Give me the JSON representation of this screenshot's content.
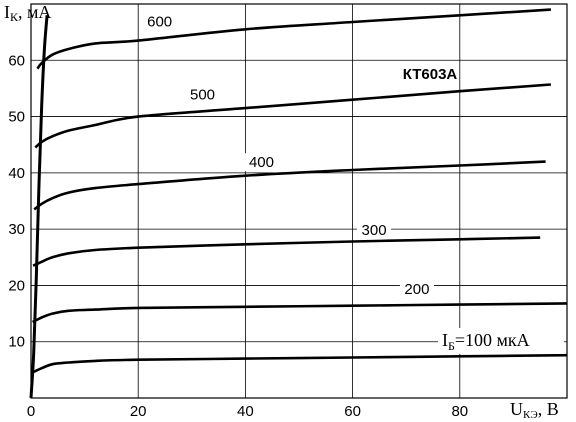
{
  "chart_data": {
    "type": "line",
    "title": "КТ603А",
    "ylabel_main": "I",
    "ylabel_sub": "К",
    "ylabel_unit": ", мА",
    "xlabel_main": "U",
    "xlabel_sub": "КЭ",
    "xlabel_unit": ", В",
    "param_prefix": "I",
    "param_sub": "Б",
    "param_suffix": "=100 мкА",
    "xlim": [
      0,
      100
    ],
    "ylim": [
      0,
      70
    ],
    "xticks": [
      0,
      20,
      40,
      60,
      80
    ],
    "yticks": [
      10,
      20,
      30,
      40,
      50,
      60
    ],
    "grid": true,
    "series": [
      {
        "name": "600",
        "x": [
          1.2,
          2,
          4,
          7,
          12,
          20,
          40,
          60,
          80,
          97
        ],
        "y": [
          58.5,
          59.5,
          61,
          62,
          63,
          63.5,
          65.5,
          66.8,
          68,
          69
        ]
      },
      {
        "name": "500",
        "x": [
          0.8,
          2,
          4,
          7,
          12,
          20,
          40,
          60,
          80,
          97
        ],
        "y": [
          44.5,
          45.5,
          46.5,
          47.5,
          48.5,
          50,
          51.5,
          53,
          54.5,
          55.7
        ]
      },
      {
        "name": "400",
        "x": [
          0.6,
          2,
          4,
          7,
          12,
          20,
          40,
          60,
          80,
          96
        ],
        "y": [
          33.5,
          34.5,
          35.5,
          36.5,
          37.3,
          38,
          39.5,
          40.5,
          41.3,
          42
        ]
      },
      {
        "name": "300",
        "x": [
          0.4,
          2,
          4,
          7,
          12,
          20,
          40,
          60,
          80,
          95
        ],
        "y": [
          23.5,
          24.2,
          25,
          25.7,
          26.3,
          26.7,
          27.3,
          27.8,
          28.2,
          28.5
        ]
      },
      {
        "name": "200",
        "x": [
          0.3,
          2,
          4,
          7,
          12,
          20,
          40,
          60,
          80,
          100
        ],
        "y": [
          13.5,
          14.3,
          15,
          15.5,
          15.7,
          16,
          16.2,
          16.4,
          16.6,
          16.8
        ]
      },
      {
        "name": "100",
        "x": [
          0.2,
          2,
          4,
          7,
          12,
          20,
          40,
          60,
          80,
          100
        ],
        "y": [
          4.5,
          5.3,
          6,
          6.3,
          6.6,
          6.8,
          7,
          7.2,
          7.4,
          7.6
        ]
      }
    ],
    "saturation_line": {
      "x": [
        0,
        0.5,
        1,
        1.5,
        2,
        2.5,
        3
      ],
      "y": [
        0,
        8,
        22,
        38,
        52,
        62,
        68
      ]
    },
    "curve_label_positions": [
      {
        "text": "600",
        "x": 24,
        "y": 66
      },
      {
        "text": "500",
        "x": 32,
        "y": 53
      },
      {
        "text": "400",
        "x": 43,
        "y": 41
      },
      {
        "text": "300",
        "x": 64,
        "y": 29
      },
      {
        "text": "200",
        "x": 72,
        "y": 18.5
      }
    ]
  }
}
